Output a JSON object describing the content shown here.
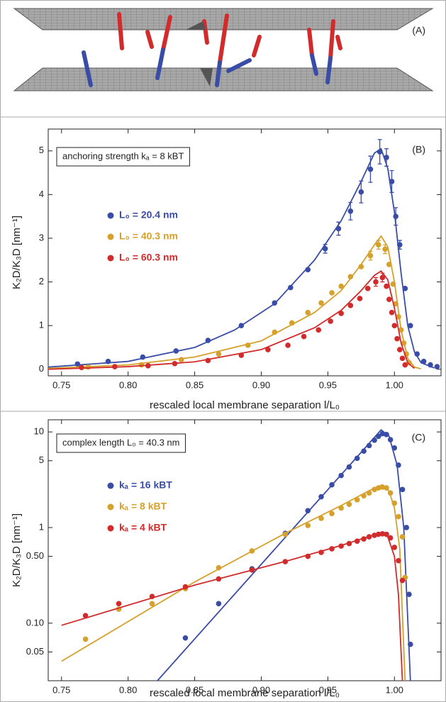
{
  "panel_a": {
    "label": "(A)"
  },
  "chart_data": [
    {
      "type": "scatter",
      "panel_label": "(B)",
      "annotation": "anchoring strength kₐ = 8 kBT",
      "x_label": "rescaled local membrane separation l/L₀",
      "y_label": "K₂D/K₃D [nm⁻¹]",
      "xlim": [
        0.74,
        1.035
      ],
      "ylim": [
        -0.15,
        5.5
      ],
      "log_y": false,
      "xticks": [
        0.75,
        {
          "value": 0.8,
          "label": "0.80"
        },
        0.85,
        {
          "value": 0.9,
          "label": "0.90"
        },
        0.95,
        {
          "value": 1,
          "label": "1.00"
        }
      ],
      "yticks": [
        0,
        1,
        2,
        3,
        4,
        5
      ],
      "series": [
        {
          "name": "L₀ = 20.4 nm",
          "color": "#3a4da6",
          "x": [
            0.762,
            0.785,
            0.811,
            0.836,
            0.86,
            0.885,
            0.91,
            0.922,
            0.935,
            0.948,
            0.958,
            0.967,
            0.975,
            0.982,
            0.989,
            0.994,
            0.998,
            1.001,
            1.004,
            1.008,
            1.012,
            1.017,
            1.022,
            1.027,
            1.032
          ],
          "values": [
            0.12,
            0.18,
            0.28,
            0.42,
            0.66,
            1.0,
            1.52,
            1.87,
            2.28,
            2.76,
            3.22,
            3.62,
            4.06,
            4.58,
            4.98,
            4.85,
            4.3,
            3.5,
            2.85,
            1.85,
            1.0,
            0.35,
            0.18,
            0.1,
            0.06
          ],
          "errors": [
            null,
            null,
            null,
            null,
            null,
            null,
            null,
            null,
            null,
            0.1,
            0.15,
            0.2,
            0.25,
            0.3,
            0.28,
            0.2,
            0.25,
            0.2,
            0.1,
            null,
            null,
            null,
            null,
            null,
            null
          ],
          "fit_x": [
            0.74,
            0.8,
            0.85,
            0.88,
            0.91,
            0.94,
            0.96,
            0.975,
            0.985,
            0.99,
            0.995,
            1.0,
            1.005,
            1.01,
            1.015,
            1.02,
            1.03
          ],
          "fit_values": [
            0.05,
            0.18,
            0.5,
            0.9,
            1.5,
            2.5,
            3.4,
            4.3,
            4.95,
            5.05,
            4.6,
            3.6,
            2.2,
            1.0,
            0.4,
            0.15,
            0.03
          ]
        },
        {
          "name": "L₀ = 40.3 nm",
          "color": "#d6a12b",
          "x": [
            0.77,
            0.81,
            0.84,
            0.868,
            0.89,
            0.91,
            0.923,
            0.935,
            0.945,
            0.953,
            0.96,
            0.967,
            0.975,
            0.982,
            0.988,
            0.993,
            0.996,
            0.999,
            1.001,
            1.003,
            1.005,
            1.007,
            1.009,
            1.011
          ],
          "values": [
            0.05,
            0.1,
            0.22,
            0.35,
            0.55,
            0.85,
            1.06,
            1.3,
            1.52,
            1.75,
            1.9,
            2.12,
            2.35,
            2.6,
            2.85,
            2.75,
            2.4,
            1.95,
            1.5,
            1.2,
            0.9,
            0.6,
            0.35,
            0.15
          ],
          "errors": [
            null,
            null,
            null,
            null,
            null,
            null,
            null,
            null,
            null,
            null,
            null,
            null,
            null,
            0.1,
            0.1,
            0.1,
            null,
            null,
            null,
            null,
            null,
            null,
            null,
            null
          ],
          "fit_x": [
            0.74,
            0.8,
            0.85,
            0.9,
            0.94,
            0.96,
            0.975,
            0.985,
            0.99,
            0.995,
            1.0,
            1.005,
            1.01,
            1.015,
            1.02
          ],
          "fit_values": [
            0.02,
            0.1,
            0.28,
            0.65,
            1.3,
            1.8,
            2.4,
            2.85,
            3.05,
            2.8,
            2.0,
            0.9,
            0.25,
            0.05,
            0.01
          ]
        },
        {
          "name": "L₀ = 60.3 nm",
          "color": "#d22b2b",
          "x": [
            0.765,
            0.79,
            0.815,
            0.835,
            0.86,
            0.885,
            0.905,
            0.92,
            0.932,
            0.943,
            0.952,
            0.96,
            0.967,
            0.974,
            0.98,
            0.986,
            0.991,
            0.994,
            0.996,
            0.998,
            1.0,
            1.002,
            1.004,
            1.006,
            1.008
          ],
          "values": [
            0.04,
            0.06,
            0.08,
            0.13,
            0.2,
            0.32,
            0.45,
            0.55,
            0.75,
            0.9,
            1.1,
            1.28,
            1.46,
            1.62,
            1.85,
            2.0,
            2.1,
            1.9,
            1.6,
            1.3,
            1.0,
            0.7,
            0.45,
            0.25,
            0.1
          ],
          "errors": [
            null,
            null,
            null,
            null,
            null,
            null,
            null,
            null,
            null,
            null,
            null,
            null,
            null,
            null,
            null,
            0.1,
            0.1,
            null,
            null,
            null,
            null,
            null,
            null,
            null,
            null
          ],
          "fit_x": [
            0.74,
            0.8,
            0.85,
            0.9,
            0.94,
            0.96,
            0.975,
            0.985,
            0.99,
            0.995,
            1.0,
            1.005,
            1.01,
            1.015
          ],
          "fit_values": [
            0.0,
            0.06,
            0.17,
            0.45,
            0.95,
            1.35,
            1.8,
            2.15,
            2.25,
            2.05,
            1.4,
            0.6,
            0.15,
            0.02
          ]
        }
      ]
    },
    {
      "type": "scatter",
      "panel_label": "(C)",
      "annotation": "complex length L₀ = 40.3 nm",
      "x_label": "rescaled local membrane separation l/L₀",
      "y_label": "K₂D/K₃D [nm⁻¹]",
      "xlim": [
        0.74,
        1.035
      ],
      "ylim": [
        0.025,
        13.4
      ],
      "log_y": true,
      "xticks": [
        0.75,
        {
          "value": 0.8,
          "label": "0.80"
        },
        0.85,
        {
          "value": 0.9,
          "label": "0.90"
        },
        0.95,
        {
          "value": 1,
          "label": "1.00"
        }
      ],
      "yticks": [
        0.05,
        {
          "value": 0.1,
          "label": "0.10"
        },
        {
          "value": 0.5,
          "label": "0.50"
        },
        1,
        5,
        10
      ],
      "series": [
        {
          "name": "kₐ = 16 kBT",
          "color": "#3a4da6",
          "x": [
            0.843,
            0.868,
            0.893,
            0.918,
            0.935,
            0.945,
            0.953,
            0.96,
            0.966,
            0.972,
            0.977,
            0.981,
            0.985,
            0.988,
            0.991,
            0.994,
            0.997,
            1.0,
            1.003,
            1.006,
            1.009,
            1.011,
            1.012
          ],
          "values": [
            0.07,
            0.16,
            0.37,
            0.87,
            1.5,
            2.1,
            2.8,
            3.5,
            4.3,
            5.3,
            6.3,
            7.2,
            8.2,
            9.0,
            9.6,
            9.4,
            8.3,
            6.8,
            4.5,
            2.5,
            1.0,
            0.2,
            0.06
          ],
          "fit_x": [
            0.822,
            0.99,
            0.996,
            1.002,
            1.007,
            1.012
          ],
          "fit_values": [
            0.025,
            10.5,
            9.0,
            4.5,
            1.0,
            0.025
          ]
        },
        {
          "name": "kₐ =  8 kBT",
          "color": "#d6a12b",
          "x": [
            0.768,
            0.793,
            0.818,
            0.843,
            0.868,
            0.893,
            0.918,
            0.935,
            0.945,
            0.953,
            0.96,
            0.966,
            0.972,
            0.977,
            0.981,
            0.985,
            0.988,
            0.991,
            0.994,
            0.997,
            1.0,
            1.003,
            1.006,
            1.008
          ],
          "values": [
            0.068,
            0.14,
            0.16,
            0.23,
            0.38,
            0.57,
            0.85,
            1.05,
            1.25,
            1.4,
            1.6,
            1.75,
            1.95,
            2.15,
            2.3,
            2.5,
            2.6,
            2.65,
            2.6,
            2.3,
            1.8,
            1.3,
            0.8,
            0.3
          ],
          "fit_x": [
            0.75,
            0.85,
            0.92,
            0.96,
            0.985,
            0.991,
            0.996,
            1.0,
            1.004,
            1.008
          ],
          "fit_values": [
            0.04,
            0.27,
            0.9,
            1.7,
            2.6,
            2.8,
            2.4,
            1.6,
            0.6,
            0.025
          ]
        },
        {
          "name": "kₐ =  4 kBT",
          "color": "#d22b2b",
          "x": [
            0.768,
            0.793,
            0.818,
            0.843,
            0.868,
            0.893,
            0.918,
            0.935,
            0.945,
            0.953,
            0.96,
            0.966,
            0.972,
            0.977,
            0.981,
            0.985,
            0.988,
            0.991,
            0.994,
            0.997,
            1.0,
            1.003,
            1.006
          ],
          "values": [
            0.12,
            0.16,
            0.19,
            0.24,
            0.29,
            0.36,
            0.44,
            0.5,
            0.55,
            0.6,
            0.64,
            0.68,
            0.72,
            0.76,
            0.8,
            0.83,
            0.85,
            0.86,
            0.85,
            0.78,
            0.62,
            0.45,
            0.28
          ],
          "fit_x": [
            0.75,
            0.85,
            0.92,
            0.96,
            0.985,
            0.99,
            0.995,
            1.0,
            1.003,
            1.006
          ],
          "fit_values": [
            0.095,
            0.25,
            0.45,
            0.65,
            0.84,
            0.87,
            0.8,
            0.5,
            0.2,
            0.025
          ]
        }
      ]
    }
  ]
}
